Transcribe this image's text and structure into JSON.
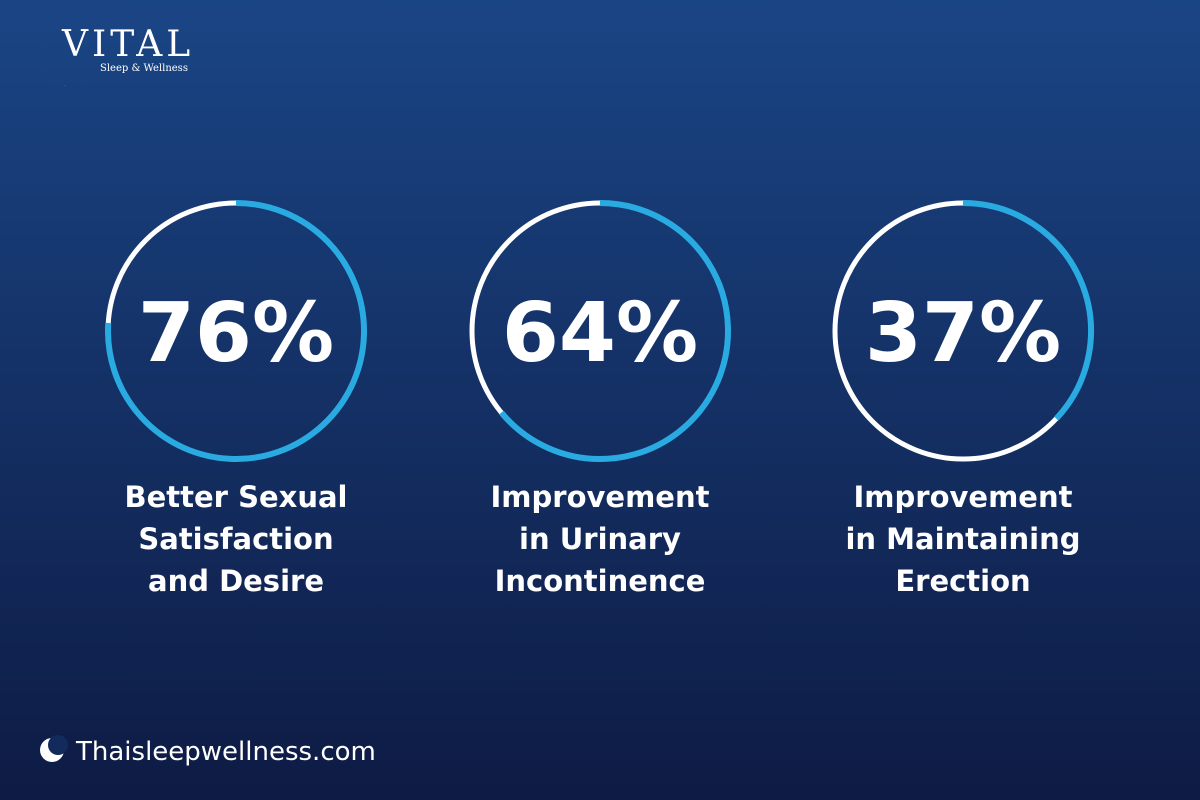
{
  "header": {
    "logo": "VITAL",
    "tagline": "Sleep & Wellness"
  },
  "chart_data": [
    {
      "type": "progress-ring",
      "values": [
        76
      ],
      "value_labels": [
        "76%"
      ],
      "label": [
        "Better Sexual",
        "Satisfaction",
        "and Desire"
      ],
      "color": "#29abe2",
      "track_color": "#ffffff"
    },
    {
      "type": "progress-ring",
      "values": [
        64
      ],
      "value_labels": [
        "64%"
      ],
      "label": [
        "Improvement",
        "in Urinary",
        "Incontinence"
      ],
      "color": "#29abe2",
      "track_color": "#ffffff"
    },
    {
      "type": "progress-ring",
      "values": [
        37
      ],
      "value_labels": [
        "37%"
      ],
      "label": [
        "Improvement",
        "in Maintaining",
        "Erection"
      ],
      "color": "#29abe2",
      "track_color": "#ffffff"
    }
  ],
  "footer": {
    "url": "Thaisleepwellness.com"
  }
}
